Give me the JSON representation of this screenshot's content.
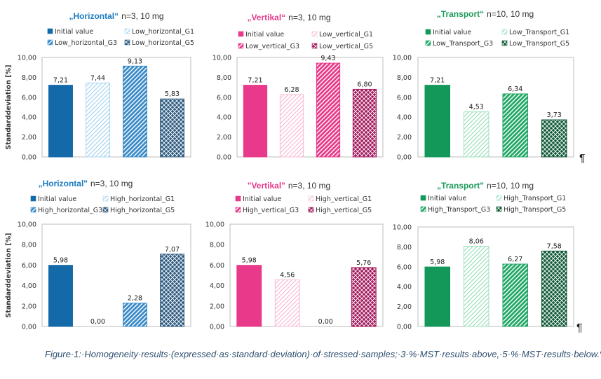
{
  "y_axis_label": "Standarddeviation [%]",
  "pilcrow": "¶",
  "caption": "Figure·1:·Homogeneity·results·(expressed·as·standard·deviation)·of·stressed·samples;·3·%·MST·results·above,·5·%·MST·results·below.¶",
  "chart_data": [
    {
      "type": "bar",
      "title": "„Horizontal“",
      "title_color": "#1a7abf",
      "subtitle": "n=3, 10 mg",
      "categories": [
        "Initial value",
        "Low_horizontal_G1",
        "Low_horizontal_G3",
        "Low_horizontal_G5"
      ],
      "values": [
        7.21,
        7.44,
        9.13,
        5.83
      ],
      "value_labels": [
        "7,21",
        "7,44",
        "9,13",
        "5,83"
      ],
      "colors": [
        "#1469a8",
        "#a9d4f0",
        "#3a8bc8",
        "#2d5a80"
      ],
      "patterns": [
        "solid",
        "light",
        "diag",
        "cross"
      ],
      "ylim": [
        0,
        10
      ],
      "ticks": [
        "0,00",
        "2,00",
        "4,00",
        "6,00",
        "8,00",
        "10,00"
      ],
      "ylabel": "Standarddeviation [%]"
    },
    {
      "type": "bar",
      "title": "„Vertikal“",
      "title_color": "#e8398a",
      "subtitle": "n=3, 10 mg",
      "categories": [
        "Initial value",
        "Low_vertical_G1",
        "Low_vertical_G3",
        "Low_vertical_G5"
      ],
      "values": [
        7.21,
        6.28,
        9.43,
        6.8
      ],
      "value_labels": [
        "7,21",
        "6,28",
        "9,43",
        "6,80"
      ],
      "colors": [
        "#e8398a",
        "#f7bcd6",
        "#e8398a",
        "#a3185c"
      ],
      "patterns": [
        "solid",
        "light",
        "diag",
        "cross"
      ],
      "ylim": [
        0,
        10
      ],
      "ticks": [
        "0,00",
        "2,00",
        "4,00",
        "6,00",
        "8,00",
        "10,00"
      ]
    },
    {
      "type": "bar",
      "title": "„Transport“",
      "title_color": "#1b9a5a",
      "subtitle": "n=10, 10 mg",
      "categories": [
        "Initial value",
        "Low_Transport_G1",
        "Low_Transport_G3",
        "Low_Transport_G5"
      ],
      "values": [
        7.21,
        4.53,
        6.34,
        3.73
      ],
      "value_labels": [
        "7,21",
        "4,53",
        "6,34",
        "3,73"
      ],
      "colors": [
        "#14985a",
        "#9de0be",
        "#22a866",
        "#0f5a36"
      ],
      "patterns": [
        "solid",
        "light",
        "diag",
        "cross"
      ],
      "ylim": [
        0,
        10
      ],
      "ticks": [
        "0,00",
        "2,00",
        "4,00",
        "6,00",
        "8,00",
        "10,00"
      ]
    },
    {
      "type": "bar",
      "title": "„Horizontal\"",
      "title_color": "#1a7abf",
      "subtitle": "n=3, 10 mg",
      "categories": [
        "Initial value",
        "High_horizontal_G1",
        "High_horizontal_G3",
        "High_horizontal_G5"
      ],
      "values": [
        5.98,
        0.0,
        2.28,
        7.07
      ],
      "value_labels": [
        "5,98",
        "0,00",
        "2,28",
        "7,07"
      ],
      "colors": [
        "#1469a8",
        "#a9d4f0",
        "#3a8bc8",
        "#2d5a80"
      ],
      "patterns": [
        "solid",
        "light",
        "diag",
        "cross"
      ],
      "ylim": [
        0,
        10
      ],
      "ticks": [
        "0,00",
        "2,00",
        "4,00",
        "6,00",
        "8,00",
        "10,00"
      ],
      "ylabel": "Standarddeviation [%]"
    },
    {
      "type": "bar",
      "title": "\"Vertikal\"",
      "title_color": "#e8398a",
      "subtitle": "n=3, 10 mg",
      "categories": [
        "Initial value",
        "High_vertical_G1",
        "High_vertical_G3",
        "High_vertical_G5"
      ],
      "values": [
        5.98,
        4.56,
        0.0,
        5.76
      ],
      "value_labels": [
        "5,98",
        "4,56",
        "0,00",
        "5,76"
      ],
      "colors": [
        "#e8398a",
        "#f7bcd6",
        "#e8398a",
        "#a3185c"
      ],
      "patterns": [
        "solid",
        "light",
        "diag",
        "cross"
      ],
      "ylim": [
        0,
        10
      ],
      "ticks": [
        "0,00",
        "2,00",
        "4,00",
        "6,00",
        "8,00",
        "10,00"
      ]
    },
    {
      "type": "bar",
      "title": "„Transport\"",
      "title_color": "#1b9a5a",
      "subtitle": "n=10, 10 mg",
      "categories": [
        "Initial value",
        "High_Transport_G1",
        "High_Transport_G3",
        "High_Transport_G5"
      ],
      "values": [
        5.98,
        8.06,
        6.27,
        7.58
      ],
      "value_labels": [
        "5,98",
        "8,06",
        "6,27",
        "7,58"
      ],
      "colors": [
        "#14985a",
        "#9de0be",
        "#22a866",
        "#0f5a36"
      ],
      "patterns": [
        "solid",
        "light",
        "diag",
        "cross"
      ],
      "ylim": [
        0,
        10
      ],
      "ticks": [
        "0,00",
        "2,00",
        "4,00",
        "6,00",
        "8,00",
        "10,00"
      ]
    }
  ]
}
